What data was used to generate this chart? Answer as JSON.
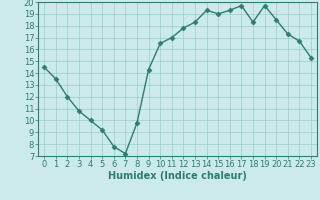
{
  "title": "",
  "xlabel": "Humidex (Indice chaleur)",
  "x": [
    0,
    1,
    2,
    3,
    4,
    5,
    6,
    7,
    8,
    9,
    10,
    11,
    12,
    13,
    14,
    15,
    16,
    17,
    18,
    19,
    20,
    21,
    22,
    23
  ],
  "y": [
    14.5,
    13.5,
    12.0,
    10.8,
    10.0,
    9.2,
    7.8,
    7.2,
    9.8,
    14.3,
    16.5,
    17.0,
    17.8,
    18.3,
    19.3,
    19.0,
    19.3,
    19.7,
    18.3,
    19.7,
    18.5,
    17.3,
    16.7,
    15.3
  ],
  "line_color": "#2e7d6e",
  "marker": "D",
  "marker_size": 2.5,
  "bg_color": "#cceaea",
  "grid_color": "#99cccc",
  "bottom_bar_color": "#2e7d6e",
  "ylim": [
    7,
    20
  ],
  "xlim": [
    -0.5,
    23.5
  ],
  "yticks": [
    7,
    8,
    9,
    10,
    11,
    12,
    13,
    14,
    15,
    16,
    17,
    18,
    19,
    20
  ],
  "xticks": [
    0,
    1,
    2,
    3,
    4,
    5,
    6,
    7,
    8,
    9,
    10,
    11,
    12,
    13,
    14,
    15,
    16,
    17,
    18,
    19,
    20,
    21,
    22,
    23
  ],
  "tick_color": "#2e7d6e",
  "label_color": "#2e7d6e",
  "axis_color": "#2e7d6e",
  "font_size": 6,
  "xlabel_font_size": 7,
  "linewidth": 1.0
}
